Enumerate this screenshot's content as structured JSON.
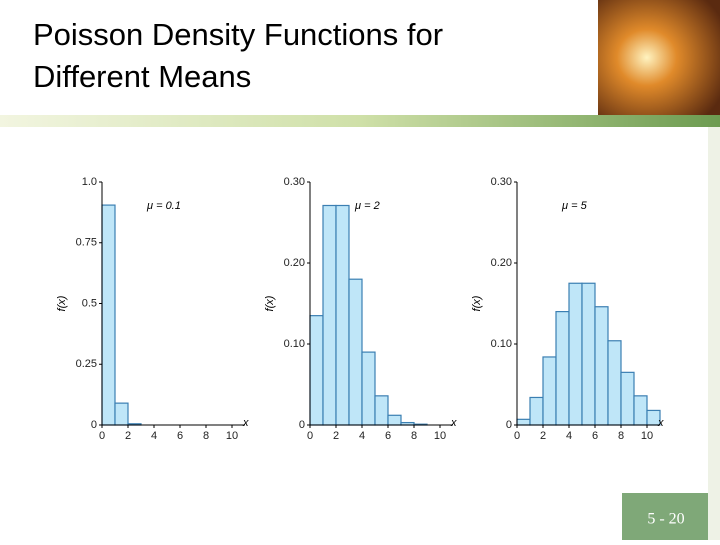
{
  "slide": {
    "title_line1": "Poisson Density Functions for",
    "title_line2": "Different Means",
    "page_number": "5 - 20"
  },
  "chart_data": [
    {
      "type": "histogram",
      "annotation": "μ = 0.1",
      "ylabel": "f(x)",
      "xlabel": "x",
      "bins": [
        0,
        1,
        2,
        3,
        4,
        5,
        6,
        7,
        8,
        9,
        10,
        11
      ],
      "values": [
        0.905,
        0.09,
        0.005,
        0,
        0,
        0,
        0,
        0,
        0,
        0,
        0
      ],
      "xlim": [
        0,
        11
      ],
      "xticks": [
        0,
        2,
        4,
        6,
        8,
        10
      ],
      "ylim": [
        0,
        1
      ],
      "yticks": [
        0,
        0.25,
        0.5,
        0.75,
        {
          "value": 1,
          "label": "1.0"
        }
      ],
      "color": "#bfe6f8",
      "edge_color": "#3b7fb2"
    },
    {
      "type": "histogram",
      "annotation": "μ = 2",
      "ylabel": "f(x)",
      "xlabel": "x",
      "bins": [
        0,
        1,
        2,
        3,
        4,
        5,
        6,
        7,
        8,
        9,
        10,
        11
      ],
      "values": [
        0.135,
        0.271,
        0.271,
        0.18,
        0.09,
        0.036,
        0.012,
        0.003,
        0.001,
        0,
        0
      ],
      "xlim": [
        0,
        11
      ],
      "xticks": [
        0,
        2,
        4,
        6,
        8,
        10
      ],
      "ylim": [
        0,
        0.3
      ],
      "yticks": [
        0,
        {
          "value": 0.1,
          "label": "0.10"
        },
        {
          "value": 0.2,
          "label": "0.20"
        },
        {
          "value": 0.3,
          "label": "0.30"
        }
      ],
      "color": "#bfe6f8",
      "edge_color": "#3b7fb2"
    },
    {
      "type": "histogram",
      "annotation": "μ = 5",
      "ylabel": "f(x)",
      "xlabel": "x",
      "bins": [
        0,
        1,
        2,
        3,
        4,
        5,
        6,
        7,
        8,
        9,
        10,
        11
      ],
      "values": [
        0.007,
        0.034,
        0.084,
        0.14,
        0.175,
        0.175,
        0.146,
        0.104,
        0.065,
        0.036,
        0.018
      ],
      "xlim": [
        0,
        11
      ],
      "xticks": [
        0,
        2,
        4,
        6,
        8,
        10
      ],
      "ylim": [
        0,
        0.3
      ],
      "yticks": [
        0,
        {
          "value": 0.1,
          "label": "0.10"
        },
        {
          "value": 0.2,
          "label": "0.20"
        },
        {
          "value": 0.3,
          "label": "0.30"
        }
      ],
      "color": "#bfe6f8",
      "edge_color": "#3b7fb2"
    }
  ]
}
